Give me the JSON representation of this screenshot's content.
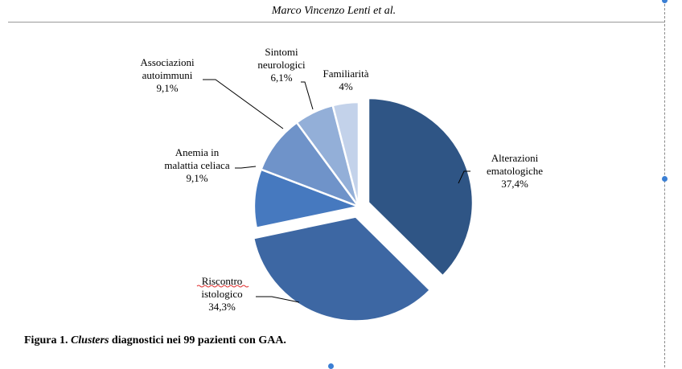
{
  "header": {
    "author": "Marco Vincenzo Lenti et al."
  },
  "caption": {
    "prefix": "Figura 1.",
    "italic": "Clusters",
    "rest": " diagnostici nei 99 pazienti con GAA."
  },
  "colors": {
    "alterazioni": "#2f5585",
    "riscontro": "#3d67a3",
    "anemia": "#4679bf",
    "associazioni": "#6f93c9",
    "sintomi": "#93afd8",
    "familiarita": "#c3d2ea"
  },
  "chart_data": {
    "type": "pie",
    "title": "",
    "slices": [
      {
        "label_lines": [
          "Alterazioni",
          "ematologiche"
        ],
        "value_label": "37,4%",
        "value": 37.4,
        "color": "#2f5585",
        "exploded": true
      },
      {
        "label_lines": [
          "Riscontro",
          "istologico"
        ],
        "value_label": "34,3%",
        "value": 34.3,
        "color": "#3d67a3",
        "exploded": true
      },
      {
        "label_lines": [
          "Anemia in",
          "malattia celiaca"
        ],
        "value_label": "9,1%",
        "value": 9.1,
        "color": "#4679bf",
        "exploded": false
      },
      {
        "label_lines": [
          "Associazioni",
          "autoimmuni"
        ],
        "value_label": "9,1%",
        "value": 9.1,
        "color": "#6f93c9",
        "exploded": false
      },
      {
        "label_lines": [
          "Sintomi",
          "neurologici"
        ],
        "value_label": "6,1%",
        "value": 6.1,
        "color": "#93afd8",
        "exploded": false
      },
      {
        "label_lines": [
          "Familiarità"
        ],
        "value_label": "4%",
        "value": 4.0,
        "color": "#c3d2ea",
        "exploded": false
      }
    ]
  }
}
